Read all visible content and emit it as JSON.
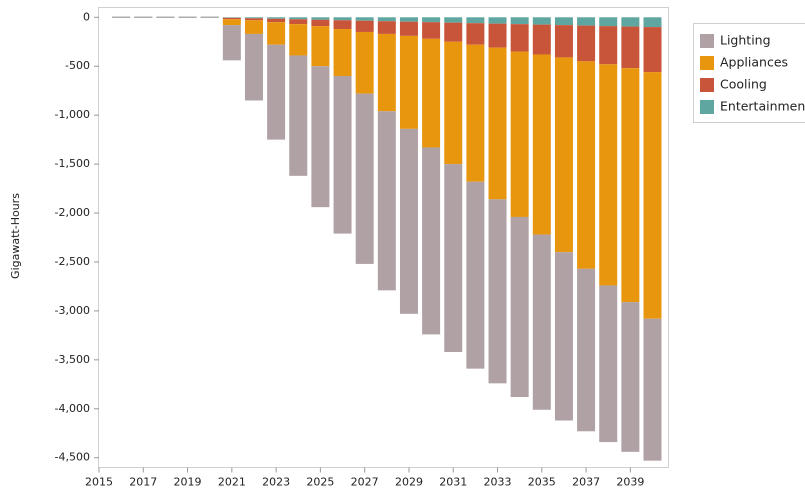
{
  "chart_data": {
    "type": "stacked-bar",
    "y_label": "Gigawatt-Hours",
    "x": [
      2016,
      2017,
      2018,
      2019,
      2020,
      2021,
      2022,
      2023,
      2024,
      2025,
      2026,
      2027,
      2028,
      2029,
      2030,
      2031,
      2032,
      2033,
      2034,
      2035,
      2036,
      2037,
      2038,
      2039,
      2040
    ],
    "series": [
      {
        "name": "Entertainment",
        "color": "#5ea69f",
        "values": [
          0,
          0,
          0,
          0,
          0,
          -5,
          -10,
          -15,
          -20,
          -25,
          -30,
          -35,
          -40,
          -45,
          -50,
          -55,
          -60,
          -65,
          -70,
          -75,
          -80,
          -85,
          -90,
          -95,
          -100
        ]
      },
      {
        "name": "Cooling",
        "color": "#c8553a",
        "values": [
          0,
          0,
          0,
          0,
          0,
          -15,
          -20,
          -35,
          -50,
          -65,
          -90,
          -115,
          -130,
          -145,
          -170,
          -195,
          -220,
          -245,
          -280,
          -305,
          -330,
          -365,
          -390,
          -425,
          -460
        ]
      },
      {
        "name": "Appliances",
        "color": "#e8960e",
        "values": [
          0,
          0,
          0,
          0,
          0,
          -60,
          -140,
          -230,
          -320,
          -410,
          -480,
          -630,
          -790,
          -950,
          -1110,
          -1250,
          -1400,
          -1550,
          -1690,
          -1840,
          -1990,
          -2120,
          -2260,
          -2390,
          -2520
        ]
      },
      {
        "name": "Lighting",
        "color": "#b0a1a5",
        "values": [
          0,
          0,
          0,
          0,
          0,
          -360,
          -680,
          -970,
          -1230,
          -1440,
          -1610,
          -1740,
          -1830,
          -1890,
          -1910,
          -1920,
          -1910,
          -1880,
          -1840,
          -1790,
          -1720,
          -1660,
          -1600,
          -1530,
          -1450
        ]
      }
    ],
    "legend_order": [
      3,
      2,
      1,
      0
    ],
    "xlim": [
      2015,
      2040.7
    ],
    "xticks": [
      2015,
      2017,
      2019,
      2021,
      2023,
      2025,
      2027,
      2029,
      2031,
      2033,
      2035,
      2037,
      2039
    ],
    "ylim": [
      -4600,
      100
    ],
    "yticks": [
      0,
      -500,
      {
        "value": -1000,
        "label": "-1,000"
      },
      {
        "value": -1500,
        "label": "-1,500"
      },
      {
        "value": -2000,
        "label": "-2,000"
      },
      {
        "value": -2500,
        "label": "-2,500"
      },
      {
        "value": -3000,
        "label": "-3,000"
      },
      {
        "value": -3500,
        "label": "-3,500"
      },
      {
        "value": -4000,
        "label": "-4,000"
      },
      {
        "value": -4500,
        "label": "-4,500"
      }
    ],
    "legend_position": "right",
    "zero_color": "#aaaaaa"
  }
}
